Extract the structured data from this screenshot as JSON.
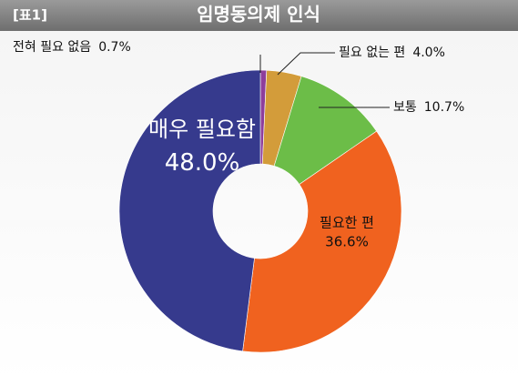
{
  "chart_data": {
    "type": "donut",
    "figure_label": "[표1]",
    "title": "임명동의제 인식",
    "categories": [
      "전혀  필요 없음",
      "필요 없는 편",
      "보통",
      "필요한 편",
      "매우 필요함"
    ],
    "values": [
      0.7,
      4.0,
      10.7,
      36.6,
      48.0
    ],
    "value_labels": [
      "0.7%",
      "4.0%",
      "10.7%",
      "36.6%",
      "48.0%"
    ],
    "colors": [
      "#8e3e9c",
      "#d39c3a",
      "#6cbd48",
      "#f0621f",
      "#363a8d"
    ]
  }
}
